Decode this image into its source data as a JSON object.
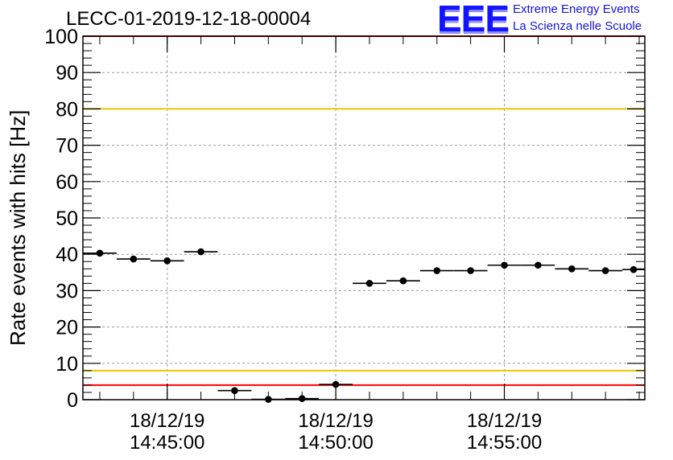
{
  "header": {
    "title": "LECC-01-2019-12-18-00004",
    "logo_text": "EEE",
    "logo_line1": "Extreme Energy Events",
    "logo_line2": "La Scienza nelle Scuole"
  },
  "colors": {
    "points": "#000000",
    "red_threshold": "#ff0000",
    "yellow_threshold": "#e8c800",
    "grid": "#9a9a9a",
    "logo": "#1414ff"
  },
  "chart_data": {
    "type": "scatter",
    "title": "LECC-01-2019-12-18-00004",
    "xlabel": "",
    "ylabel": "Rate events with hits [Hz]",
    "ylim": [
      0,
      100
    ],
    "yticks": [
      0,
      10,
      20,
      30,
      40,
      50,
      60,
      70,
      80,
      90,
      100
    ],
    "xlim": [
      "14:42:30",
      "14:59:10"
    ],
    "xticks": [
      {
        "date": "18/12/19",
        "time": "14:45:00"
      },
      {
        "date": "18/12/19",
        "time": "14:50:00"
      },
      {
        "date": "18/12/19",
        "time": "14:55:00"
      }
    ],
    "grid": true,
    "thresholds": [
      {
        "value": 100,
        "color": "red"
      },
      {
        "value": 80,
        "color": "yellow"
      },
      {
        "value": 8,
        "color": "yellow"
      },
      {
        "value": 4,
        "color": "red"
      }
    ],
    "series": [
      {
        "points": [
          {
            "x": "14:43:00",
            "y": 40.3
          },
          {
            "x": "14:44:00",
            "y": 38.7
          },
          {
            "x": "14:45:00",
            "y": 38.2
          },
          {
            "x": "14:46:00",
            "y": 40.7
          },
          {
            "x": "14:47:00",
            "y": 2.5
          },
          {
            "x": "14:48:00",
            "y": 0.1
          },
          {
            "x": "14:49:00",
            "y": 0.3
          },
          {
            "x": "14:50:00",
            "y": 4.2
          },
          {
            "x": "14:51:00",
            "y": 32.0
          },
          {
            "x": "14:52:00",
            "y": 32.7
          },
          {
            "x": "14:53:00",
            "y": 35.5
          },
          {
            "x": "14:54:00",
            "y": 35.5
          },
          {
            "x": "14:55:00",
            "y": 37.0
          },
          {
            "x": "14:56:00",
            "y": 37.0
          },
          {
            "x": "14:57:00",
            "y": 36.0
          },
          {
            "x": "14:58:00",
            "y": 35.5
          },
          {
            "x": "14:58:50",
            "y": 35.8
          }
        ]
      }
    ]
  }
}
